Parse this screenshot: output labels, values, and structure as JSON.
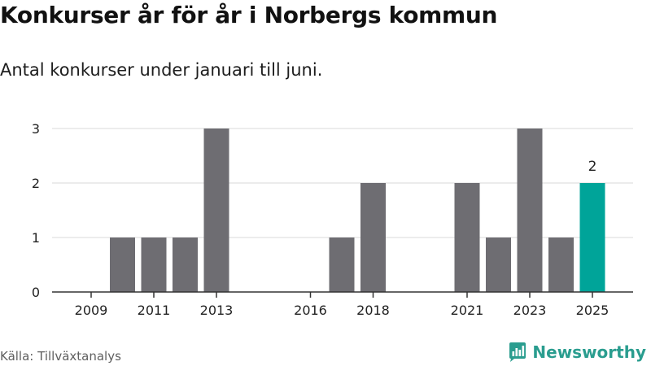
{
  "title": "Konkurser år för år i Norbergs kommun",
  "subtitle": "Antal konkurser under januari till juni.",
  "source": "Källa: Tillväxtanalys",
  "brand": "Newsworthy",
  "colors": {
    "bar": "#6e6d72",
    "highlight": "#00a499",
    "grid": "#d9d9d9",
    "axis": "#333333",
    "brand": "#2a9d8f"
  },
  "chart_data": {
    "type": "bar",
    "title": "Konkurser år för år i Norbergs kommun",
    "subtitle": "Antal konkurser under januari till juni.",
    "categories": [
      "2009",
      "2010",
      "2011",
      "2012",
      "2013",
      "2014",
      "2015",
      "2016",
      "2017",
      "2018",
      "2019",
      "2020",
      "2021",
      "2022",
      "2023",
      "2024",
      "2025"
    ],
    "values": [
      0,
      1,
      1,
      1,
      3,
      0,
      0,
      0,
      1,
      2,
      0,
      0,
      2,
      1,
      3,
      1,
      2
    ],
    "tick_labels": [
      "2009",
      "2011",
      "2013",
      "2016",
      "2018",
      "2021",
      "2023",
      "2025"
    ],
    "y_ticks": [
      0,
      1,
      2,
      3
    ],
    "ylim": [
      0,
      3
    ],
    "highlight_category": "2025",
    "data_labels": [
      {
        "category": "2025",
        "text": "2"
      }
    ],
    "xlabel": "",
    "ylabel": "",
    "grid": true,
    "legend": "none"
  }
}
